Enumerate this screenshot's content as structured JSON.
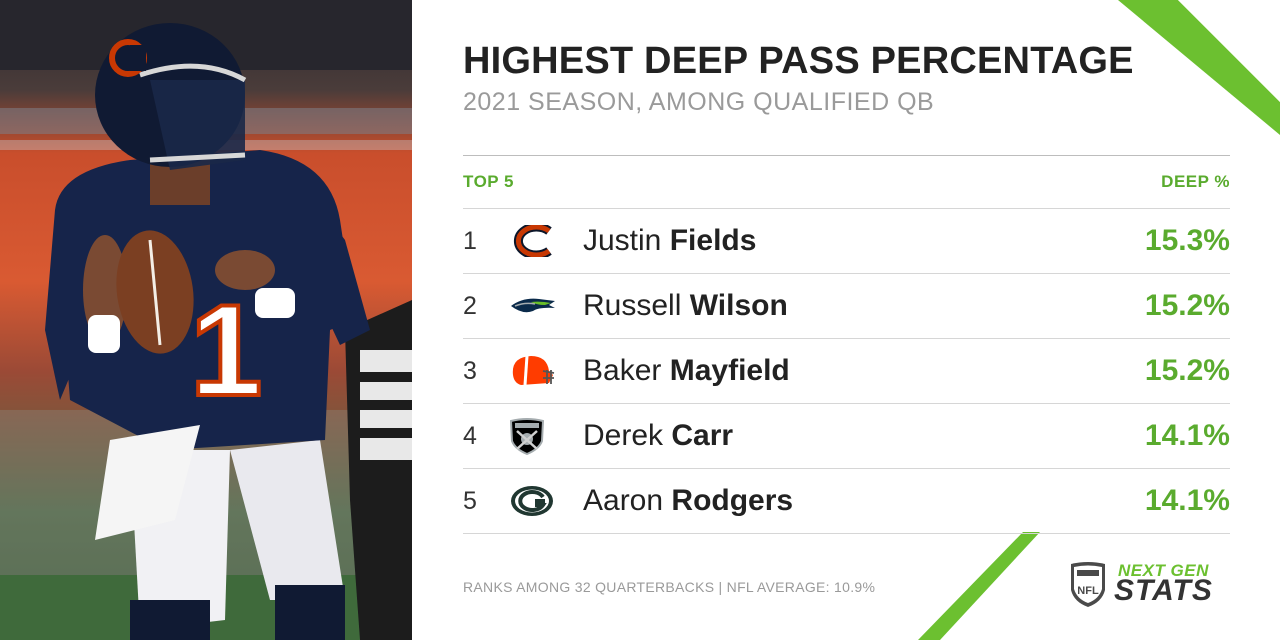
{
  "title": "HIGHEST DEEP PASS PERCENTAGE",
  "subtitle": "2021 SEASON, AMONG QUALIFIED QB",
  "table": {
    "left_header": "TOP 5",
    "right_header": "DEEP %",
    "rows": [
      {
        "rank": "1",
        "first": "Justin",
        "last": "Fields",
        "value": "15.3%",
        "logo_icon": "bears-logo-icon"
      },
      {
        "rank": "2",
        "first": "Russell",
        "last": "Wilson",
        "value": "15.2%",
        "logo_icon": "seahawks-logo-icon"
      },
      {
        "rank": "3",
        "first": "Baker",
        "last": "Mayfield",
        "value": "15.2%",
        "logo_icon": "browns-helmet-icon"
      },
      {
        "rank": "4",
        "first": "Derek",
        "last": "Carr",
        "value": "14.1%",
        "logo_icon": "raiders-shield-icon"
      },
      {
        "rank": "5",
        "first": "Aaron",
        "last": "Rodgers",
        "value": "14.1%",
        "logo_icon": "packers-logo-icon"
      }
    ]
  },
  "footnote": "RANKS AMONG 32 QUARTERBACKS | NFL AVERAGE: 10.9%",
  "brand": {
    "line1": "NEXT GEN",
    "line2": "STATS",
    "shield_text": "NFL"
  },
  "player_photo": {
    "jersey_number": "1",
    "helmet_letter": "C"
  },
  "colors": {
    "accent_green": "#5aab2e",
    "bears_navy": "#0b162a",
    "bears_orange": "#c83803"
  }
}
